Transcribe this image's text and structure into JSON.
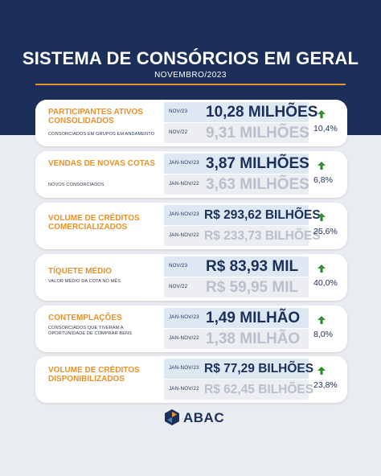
{
  "title": "SISTEMA DE CONSÓRCIOS EM GERAL",
  "subtitle": "NOVEMBRO/2023",
  "brand": {
    "name": "ABAC",
    "accent": "#e8912a",
    "navy": "#1c2f5a",
    "up_arrow_color": "#2e8b2e"
  },
  "cards": [
    {
      "title": "PARTICIPANTES ATIVOS CONSOLIDADOS",
      "desc": "CONSORCIADOS EM GRUPOS EM ANDAMENTO",
      "cur_period": "NOV/23",
      "cur_value": "10,28 MILHÕES",
      "prev_period": "NOV/22",
      "prev_value": "9,31 MILHÕES",
      "change": "10,4%"
    },
    {
      "title": "Vendas de Novas Cotas",
      "desc": "NOVOS CONSORCIADOS",
      "cur_period": "JAN-NOV/23",
      "cur_value": "3,87 MILHÕES",
      "prev_period": "JAN-NOV/22",
      "prev_value": "3,63 MILHÕES",
      "change": "6,8%"
    },
    {
      "title": "Volume de Créditos Comercializados",
      "desc": "",
      "cur_period": "JAN-NOV/23",
      "cur_value": "R$ 293,62 BILHÕES",
      "prev_period": "JAN-NOV/22",
      "prev_value": "R$ 233,73 BILHÕES",
      "change": "25,6%"
    },
    {
      "title": "Tíquete Médio",
      "desc": "VALOR MÉDIO DA COTA NO MÊS",
      "cur_period": "NOV/23",
      "cur_value": "R$ 83,93 MIL",
      "prev_period": "NOV/22",
      "prev_value": "R$ 59,95 MIL",
      "change": "40,0%"
    },
    {
      "title": "Contemplações",
      "desc": "CONSORCIADOS QUE TIVERAM A OPORTUNIDADE DE COMPRAR BENS",
      "cur_period": "JAN-NOV/23",
      "cur_value": "1,49 MILHÃO",
      "prev_period": "JAN-NOV/22",
      "prev_value": "1,38 MILHÃO",
      "change": "8,0%"
    },
    {
      "title": "Volume de Créditos Disponibilizados",
      "desc": "",
      "cur_period": "JAN-NOV/23",
      "cur_value": "R$ 77,29 BILHÕES",
      "prev_period": "JAN-NOV/22",
      "prev_value": "R$ 62,45 BILHÕES",
      "change": "23,8%"
    }
  ]
}
